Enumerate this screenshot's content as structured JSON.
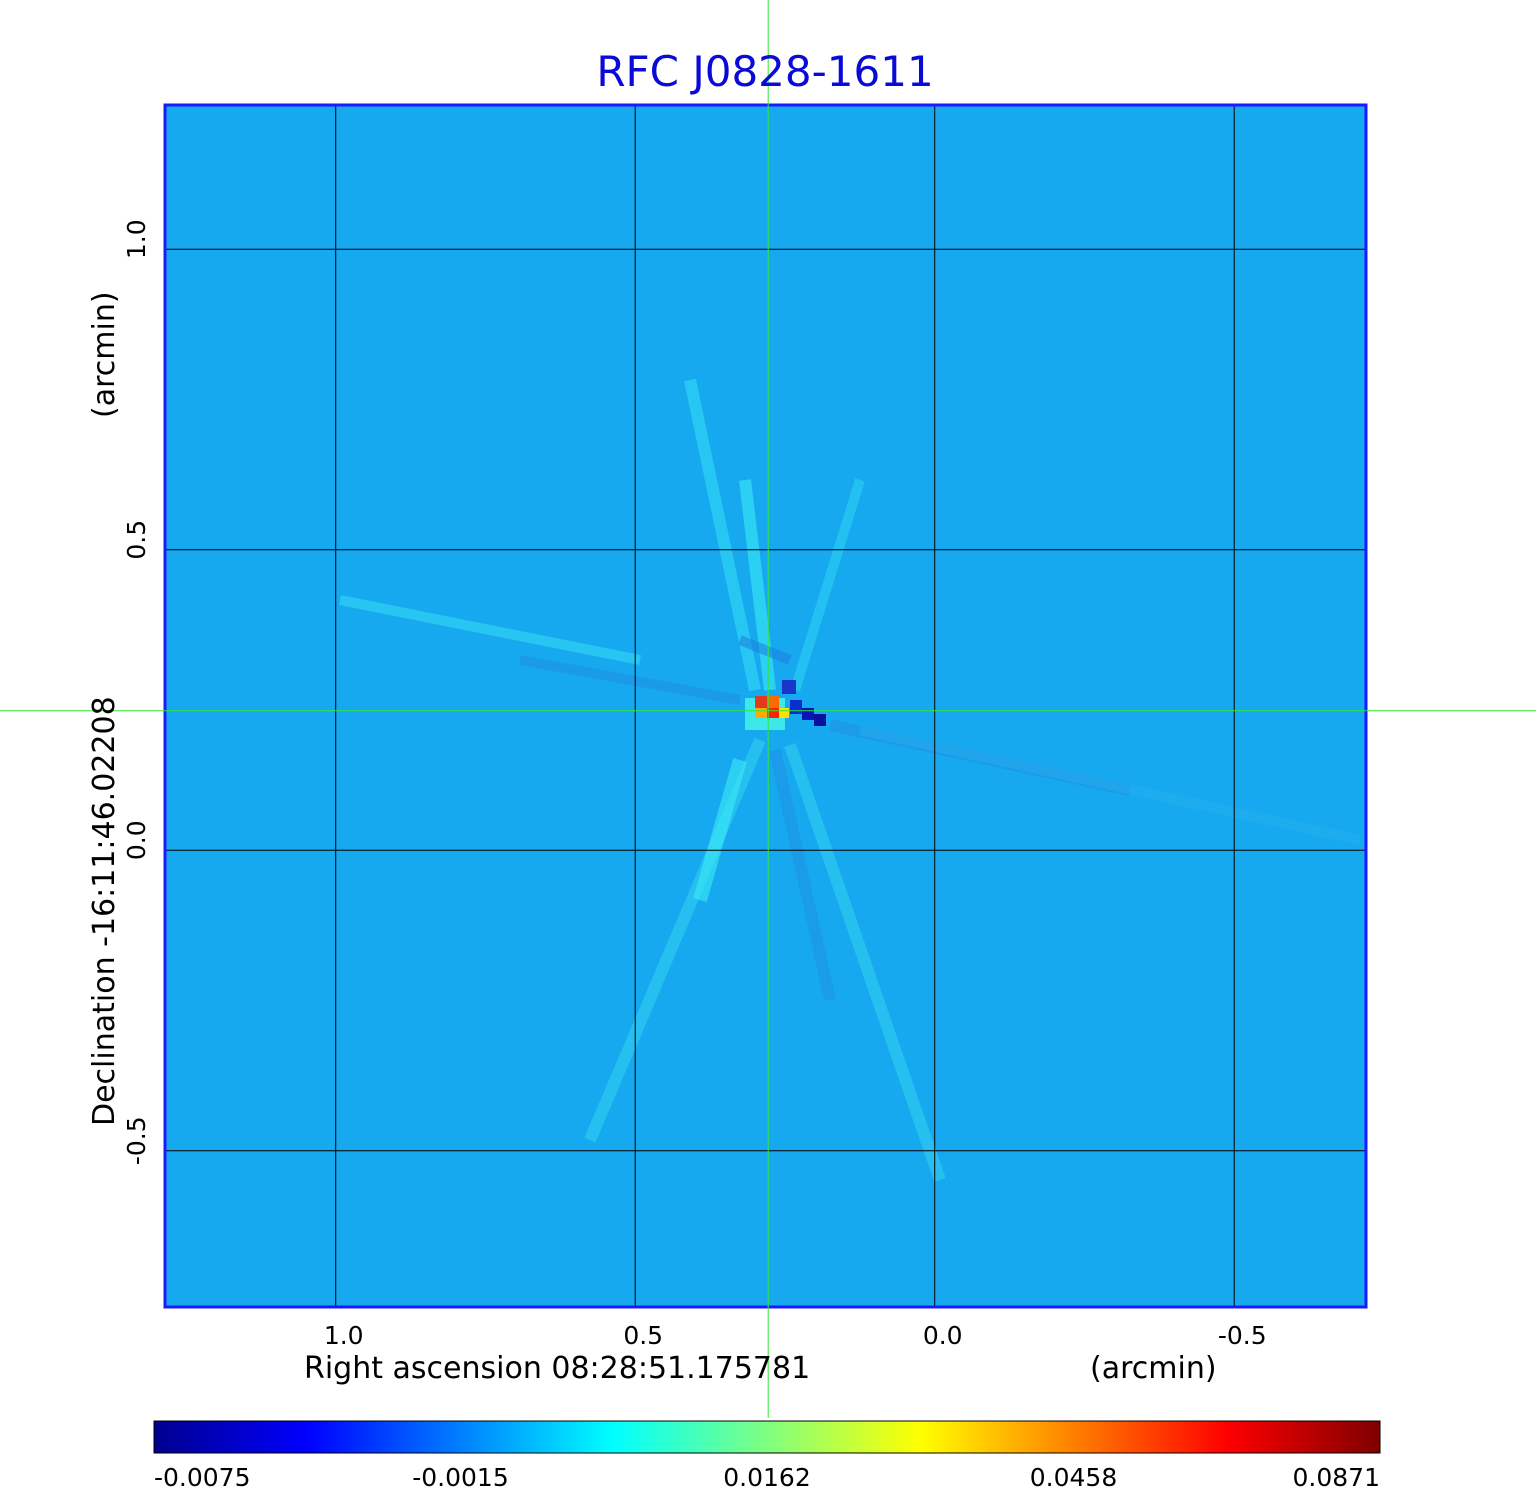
{
  "chart_data": {
    "type": "heatmap",
    "title": "RFC J0828-1611",
    "xlabel": "Right ascension  08:28:51.175781",
    "xunit": "(arcmin)",
    "ylabel": "Declination  -16:11:46.02208",
    "yunit": "(arcmin)",
    "x_ticks": [
      1.0,
      0.5,
      0.0,
      -0.5
    ],
    "x_tick_labels": [
      "1.0",
      "0.5",
      "0.0",
      "-0.5"
    ],
    "y_ticks": [
      1.0,
      0.5,
      0.0,
      -0.5
    ],
    "y_tick_labels": [
      "1.0",
      "0.5",
      "0.0",
      "-0.5"
    ],
    "xlim": [
      1.285,
      -0.72
    ],
    "ylim": [
      -0.76,
      1.24
    ],
    "grid": true,
    "crosshair": {
      "x": 0.278,
      "y": 0.232
    },
    "source_peak": {
      "x": 0.278,
      "y": 0.232,
      "value": 0.0871
    },
    "colorbar": {
      "min": -0.0075,
      "max": 0.0871,
      "ticks": [
        -0.0075,
        -0.0015,
        0.0162,
        0.0458,
        0.0871
      ],
      "tick_labels": [
        "-0.0075",
        "-0.0015",
        "0.0162",
        "0.0458",
        "0.0871"
      ],
      "colormap": "jet"
    },
    "colors": {
      "title": "#0a0ad6",
      "frame": "#1a1aff",
      "grid": "#000000",
      "crosshair": "#33e633",
      "background_level": "#17a9ef"
    }
  }
}
